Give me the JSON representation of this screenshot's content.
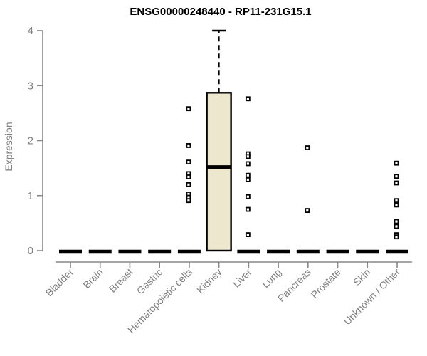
{
  "chart_data": {
    "type": "boxplot",
    "title": "ENSG00000248440 - RP11-231G15.1",
    "ylabel": "Expression",
    "ylim": [
      0,
      4
    ],
    "yticks": [
      0,
      1,
      2,
      3,
      4
    ],
    "grid": false,
    "legend": false,
    "categories": [
      "Bladder",
      "Brain",
      "Breast",
      "Gastric",
      "Hematopoietic cells",
      "Kidney",
      "Liver",
      "Lung",
      "Pancreas",
      "Prostate",
      "Skin",
      "Unknown / Other"
    ],
    "boxes": [
      {
        "category": "Bladder",
        "q1": 0,
        "median": 0,
        "q3": 0,
        "whisker_low": 0,
        "whisker_high": 0
      },
      {
        "category": "Brain",
        "q1": 0,
        "median": 0,
        "q3": 0,
        "whisker_low": 0,
        "whisker_high": 0
      },
      {
        "category": "Breast",
        "q1": 0,
        "median": 0,
        "q3": 0,
        "whisker_low": 0,
        "whisker_high": 0
      },
      {
        "category": "Gastric",
        "q1": 0,
        "median": 0,
        "q3": 0,
        "whisker_low": 0,
        "whisker_high": 0
      },
      {
        "category": "Hematopoietic cells",
        "q1": 0,
        "median": 0,
        "q3": 0,
        "whisker_low": 0,
        "whisker_high": 0
      },
      {
        "category": "Kidney",
        "q1": 0,
        "median": 1.52,
        "q3": 2.87,
        "whisker_low": 0,
        "whisker_high": 4.0
      },
      {
        "category": "Liver",
        "q1": 0,
        "median": 0,
        "q3": 0,
        "whisker_low": 0,
        "whisker_high": 0
      },
      {
        "category": "Lung",
        "q1": 0,
        "median": 0,
        "q3": 0,
        "whisker_low": 0,
        "whisker_high": 0
      },
      {
        "category": "Pancreas",
        "q1": 0,
        "median": 0,
        "q3": 0,
        "whisker_low": 0,
        "whisker_high": 0
      },
      {
        "category": "Prostate",
        "q1": 0,
        "median": 0,
        "q3": 0,
        "whisker_low": 0,
        "whisker_high": 0
      },
      {
        "category": "Skin",
        "q1": 0,
        "median": 0,
        "q3": 0,
        "whisker_low": 0,
        "whisker_high": 0
      },
      {
        "category": "Unknown / Other",
        "q1": 0,
        "median": 0,
        "q3": 0,
        "whisker_low": 0,
        "whisker_high": 0
      }
    ],
    "outlier_points": [
      {
        "category": "Hematopoietic cells",
        "values": [
          2.58,
          1.91,
          1.61,
          1.4,
          1.34,
          1.2,
          1.03,
          0.97,
          0.91
        ]
      },
      {
        "category": "Liver",
        "values": [
          2.76,
          1.76,
          1.71,
          1.58,
          1.37,
          1.29,
          0.98,
          0.75,
          0.29
        ]
      },
      {
        "category": "Pancreas",
        "values": [
          1.87,
          0.73
        ]
      },
      {
        "category": "Unknown / Other",
        "values": [
          1.59,
          1.35,
          1.23,
          0.91,
          0.83,
          0.53,
          0.44,
          0.29,
          0.25
        ]
      }
    ],
    "colors": {
      "box_fill": "#ece7cd",
      "box_stroke": "#000000",
      "median": "#000000",
      "zero_bar": "#000000",
      "point_stroke": "#000000",
      "point_fill": "#ffffff",
      "axis_line": "#888888",
      "tick_text": "#808080",
      "title_text": "#000000"
    }
  }
}
